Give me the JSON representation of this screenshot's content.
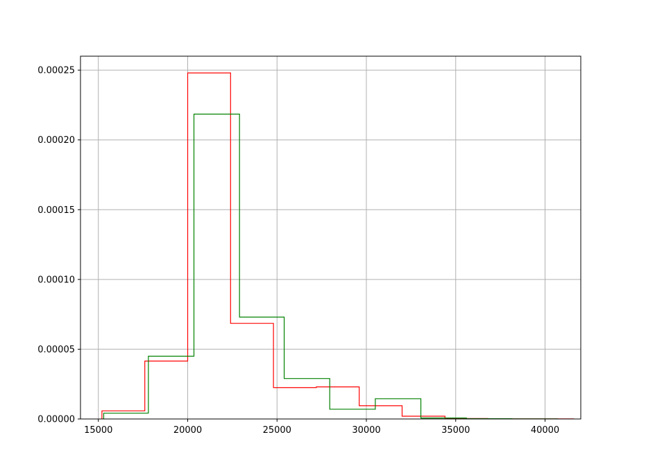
{
  "chart_data": {
    "type": "histogram",
    "title": "",
    "xlabel": "",
    "ylabel": "",
    "xlim": [
      14000,
      42000
    ],
    "ylim": [
      0,
      0.00026
    ],
    "grid": true,
    "x_ticks": [
      15000,
      20000,
      25000,
      30000,
      35000,
      40000
    ],
    "x_tick_labels": [
      "15000",
      "20000",
      "25000",
      "30000",
      "35000",
      "40000"
    ],
    "y_ticks": [
      0,
      5e-05,
      0.0001,
      0.00015,
      0.0002,
      0.00025
    ],
    "y_tick_labels": [
      "0.00000",
      "0.00005",
      "0.00010",
      "0.00015",
      "0.00020",
      "0.00025"
    ],
    "series": [
      {
        "color": "#ff0000",
        "bin_edges": [
          15200,
          17600,
          20000,
          22400,
          24800,
          27200,
          29600,
          32000,
          34400,
          36800,
          39200,
          41600
        ],
        "values": [
          5.8e-06,
          4.15e-05,
          0.000248,
          6.85e-05,
          2.25e-05,
          2.3e-05,
          9.5e-06,
          2e-06,
          3e-07,
          1e-07,
          1e-07
        ]
      },
      {
        "color": "#008000",
        "bin_edges": [
          15300,
          17800,
          20350,
          22900,
          25400,
          27950,
          30500,
          33050,
          35600,
          38150,
          40700
        ],
        "values": [
          4.2e-06,
          4.5e-05,
          0.0002185,
          7.3e-05,
          2.9e-05,
          7e-06,
          1.45e-05,
          7e-07,
          2e-07,
          1e-07
        ]
      }
    ]
  }
}
